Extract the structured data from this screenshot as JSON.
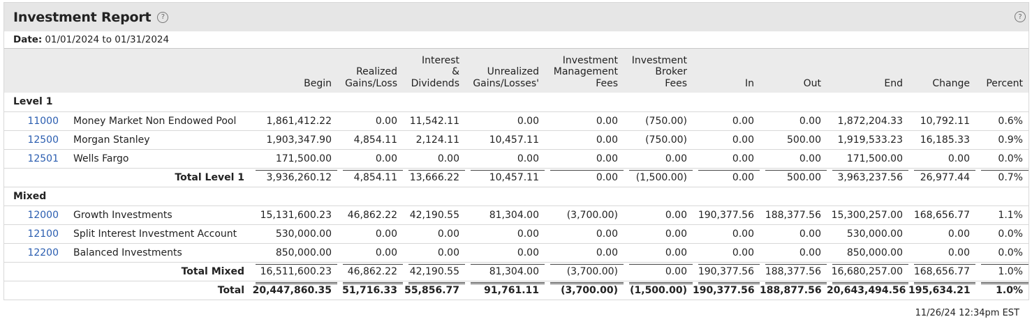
{
  "report": {
    "title": "Investment Report",
    "help_glyph": "?",
    "date_label": "Date:",
    "date_value": "01/01/2024 to 01/31/2024",
    "timestamp": "11/26/24 12:34pm EST"
  },
  "columns": {
    "begin": "Begin",
    "realized_1": "Realized",
    "realized_2": "Gains/Loss",
    "interest_1": "Interest",
    "interest_2": "&",
    "interest_3": "Dividends",
    "unrealized_1": "Unrealized",
    "unrealized_2": "Gains/Losses'",
    "mgmt_1": "Investment",
    "mgmt_2": "Management",
    "mgmt_3": "Fees",
    "broker_1": "Investment",
    "broker_2": "Broker",
    "broker_3": "Fees",
    "in": "In",
    "out": "Out",
    "end": "End",
    "change": "Change",
    "percent": "Percent"
  },
  "groups": [
    {
      "name": "Level 1",
      "rows": [
        {
          "code": "11000",
          "name": "Money Market Non Endowed Pool",
          "values": [
            "1,861,412.22",
            "0.00",
            "11,542.11",
            "0.00",
            "0.00",
            "(750.00)",
            "0.00",
            "0.00",
            "1,872,204.33",
            "10,792.11",
            "0.6%"
          ]
        },
        {
          "code": "12500",
          "name": "Morgan Stanley",
          "values": [
            "1,903,347.90",
            "4,854.11",
            "2,124.11",
            "10,457.11",
            "0.00",
            "(750.00)",
            "0.00",
            "500.00",
            "1,919,533.23",
            "16,185.33",
            "0.9%"
          ]
        },
        {
          "code": "12501",
          "name": "Wells Fargo",
          "values": [
            "171,500.00",
            "0.00",
            "0.00",
            "0.00",
            "0.00",
            "0.00",
            "0.00",
            "0.00",
            "171,500.00",
            "0.00",
            "0.0%"
          ]
        }
      ],
      "total": {
        "label": "Total Level 1",
        "values": [
          "3,936,260.12",
          "4,854.11",
          "13,666.22",
          "10,457.11",
          "0.00",
          "(1,500.00)",
          "0.00",
          "500.00",
          "3,963,237.56",
          "26,977.44",
          "0.7%"
        ]
      }
    },
    {
      "name": "Mixed",
      "rows": [
        {
          "code": "12000",
          "name": "Growth Investments",
          "values": [
            "15,131,600.23",
            "46,862.22",
            "42,190.55",
            "81,304.00",
            "(3,700.00)",
            "0.00",
            "190,377.56",
            "188,377.56",
            "15,300,257.00",
            "168,656.77",
            "1.1%"
          ]
        },
        {
          "code": "12100",
          "name": "Split Interest Investment Account",
          "values": [
            "530,000.00",
            "0.00",
            "0.00",
            "0.00",
            "0.00",
            "0.00",
            "0.00",
            "0.00",
            "530,000.00",
            "0.00",
            "0.0%"
          ]
        },
        {
          "code": "12200",
          "name": "Balanced Investments",
          "values": [
            "850,000.00",
            "0.00",
            "0.00",
            "0.00",
            "0.00",
            "0.00",
            "0.00",
            "0.00",
            "850,000.00",
            "0.00",
            "0.0%"
          ]
        }
      ],
      "total": {
        "label": "Total Mixed",
        "values": [
          "16,511,600.23",
          "46,862.22",
          "42,190.55",
          "81,304.00",
          "(3,700.00)",
          "0.00",
          "190,377.56",
          "188,377.56",
          "16,680,257.00",
          "168,656.77",
          "1.0%"
        ]
      }
    }
  ],
  "grand_total": {
    "label": "Total",
    "values": [
      "20,447,860.35",
      "51,716.33",
      "55,856.77",
      "91,761.11",
      "(3,700.00)",
      "(1,500.00)",
      "190,377.56",
      "188,877.56",
      "20,643,494.56",
      "195,634.21",
      "1.0%"
    ]
  }
}
